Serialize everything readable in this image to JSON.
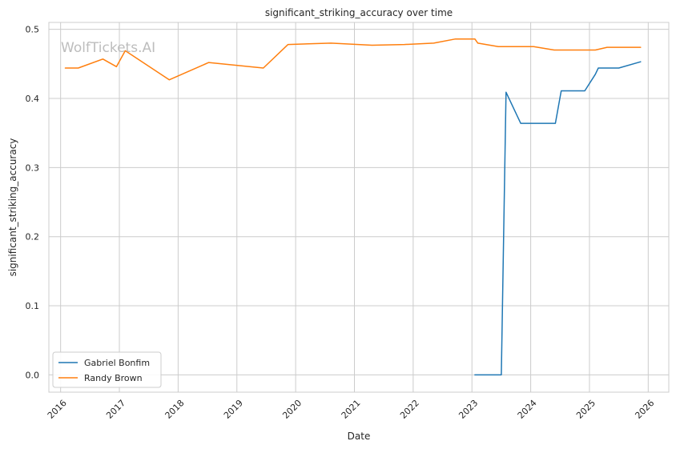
{
  "chart_data": {
    "type": "line",
    "title": "significant_striking_accuracy over time",
    "xlabel": "Date",
    "ylabel": "significant_striking_accuracy",
    "watermark": "WolfTickets.AI",
    "xlim": [
      2015.8,
      2026.35
    ],
    "ylim": [
      -0.025,
      0.51
    ],
    "x_ticks": [
      2016,
      2017,
      2018,
      2019,
      2020,
      2021,
      2022,
      2023,
      2024,
      2025,
      2026
    ],
    "x_tick_labels": [
      "2016",
      "2017",
      "2018",
      "2019",
      "2020",
      "2021",
      "2022",
      "2023",
      "2024",
      "2025",
      "2026"
    ],
    "y_ticks": [
      0.0,
      0.1,
      0.2,
      0.3,
      0.4,
      0.5
    ],
    "y_tick_labels": [
      "0.0",
      "0.1",
      "0.2",
      "0.3",
      "0.4",
      "0.5"
    ],
    "grid": true,
    "legend_position": "bottom-left",
    "series": [
      {
        "name": "Gabriel Bonfim",
        "color": "#1f77b4",
        "x": [
          2023.05,
          2023.5,
          2023.58,
          2023.83,
          2024.42,
          2024.52,
          2024.92,
          2025.1,
          2025.15,
          2025.5,
          2025.87
        ],
        "y": [
          0.0,
          0.0,
          0.409,
          0.364,
          0.364,
          0.411,
          0.411,
          0.435,
          0.444,
          0.444,
          0.453
        ]
      },
      {
        "name": "Randy Brown",
        "color": "#ff7f0e",
        "x": [
          2016.08,
          2016.3,
          2016.72,
          2016.95,
          2017.1,
          2017.85,
          2018.52,
          2019.45,
          2019.87,
          2020.6,
          2021.3,
          2021.85,
          2022.35,
          2022.72,
          2023.05,
          2023.1,
          2023.45,
          2024.05,
          2024.4,
          2025.1,
          2025.3,
          2025.87
        ],
        "y": [
          0.444,
          0.444,
          0.457,
          0.446,
          0.469,
          0.427,
          0.452,
          0.444,
          0.478,
          0.48,
          0.477,
          0.478,
          0.48,
          0.486,
          0.486,
          0.48,
          0.475,
          0.475,
          0.47,
          0.47,
          0.474,
          0.474
        ]
      }
    ]
  }
}
